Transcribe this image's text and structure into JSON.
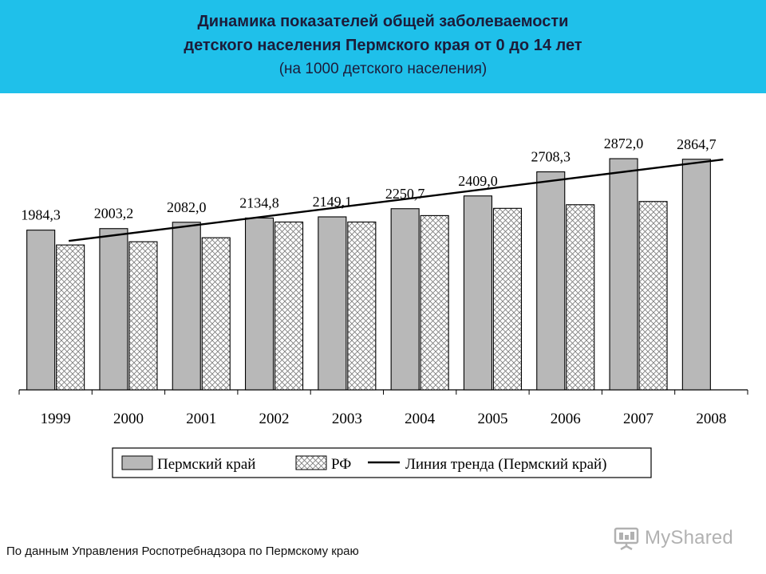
{
  "header": {
    "title_line1": "Динамика показателей общей заболеваемости",
    "title_line2": "детского населения Пермского края от 0 до 14 лет",
    "subtitle": "(на 1000 детского населения)"
  },
  "colors": {
    "header_bg": "#1fc0ea",
    "perm_fill": "#b8b8b8",
    "rf_hatch": "#7a7a7a",
    "trend": "#000000"
  },
  "chart_data": {
    "type": "bar",
    "title": "Динамика показателей общей заболеваемости детского населения Пермского края от 0 до 14 лет",
    "subtitle": "(на 1000 детского населения)",
    "categories": [
      "1999",
      "2000",
      "2001",
      "2002",
      "2003",
      "2004",
      "2005",
      "2006",
      "2007",
      "2008"
    ],
    "series": [
      {
        "name": "Пермский край",
        "values": [
          1984.3,
          2003.2,
          2082.0,
          2134.8,
          2149.1,
          2250.7,
          2409.0,
          2708.3,
          2872.0,
          2864.7
        ],
        "labels": [
          "1984,3",
          "2003,2",
          "2082,0",
          "2134,8",
          "2149,1",
          "2250,7",
          "2409,0",
          "2708,3",
          "2872,0",
          "2864,7"
        ]
      },
      {
        "name": "РФ",
        "values": [
          1800,
          1840,
          1890,
          2085,
          2085,
          2165,
          2255,
          2300,
          2340,
          0
        ]
      }
    ],
    "trend": {
      "name": "Линия тренда (Пермский край)",
      "start": 1850,
      "end": 2862
    },
    "ylim": [
      0,
      3100
    ],
    "grid": false,
    "legend_position": "bottom"
  },
  "footer": {
    "source": "По данным Управления Роспотребнадзора по Пермскому краю",
    "watermark": "MyShared"
  }
}
